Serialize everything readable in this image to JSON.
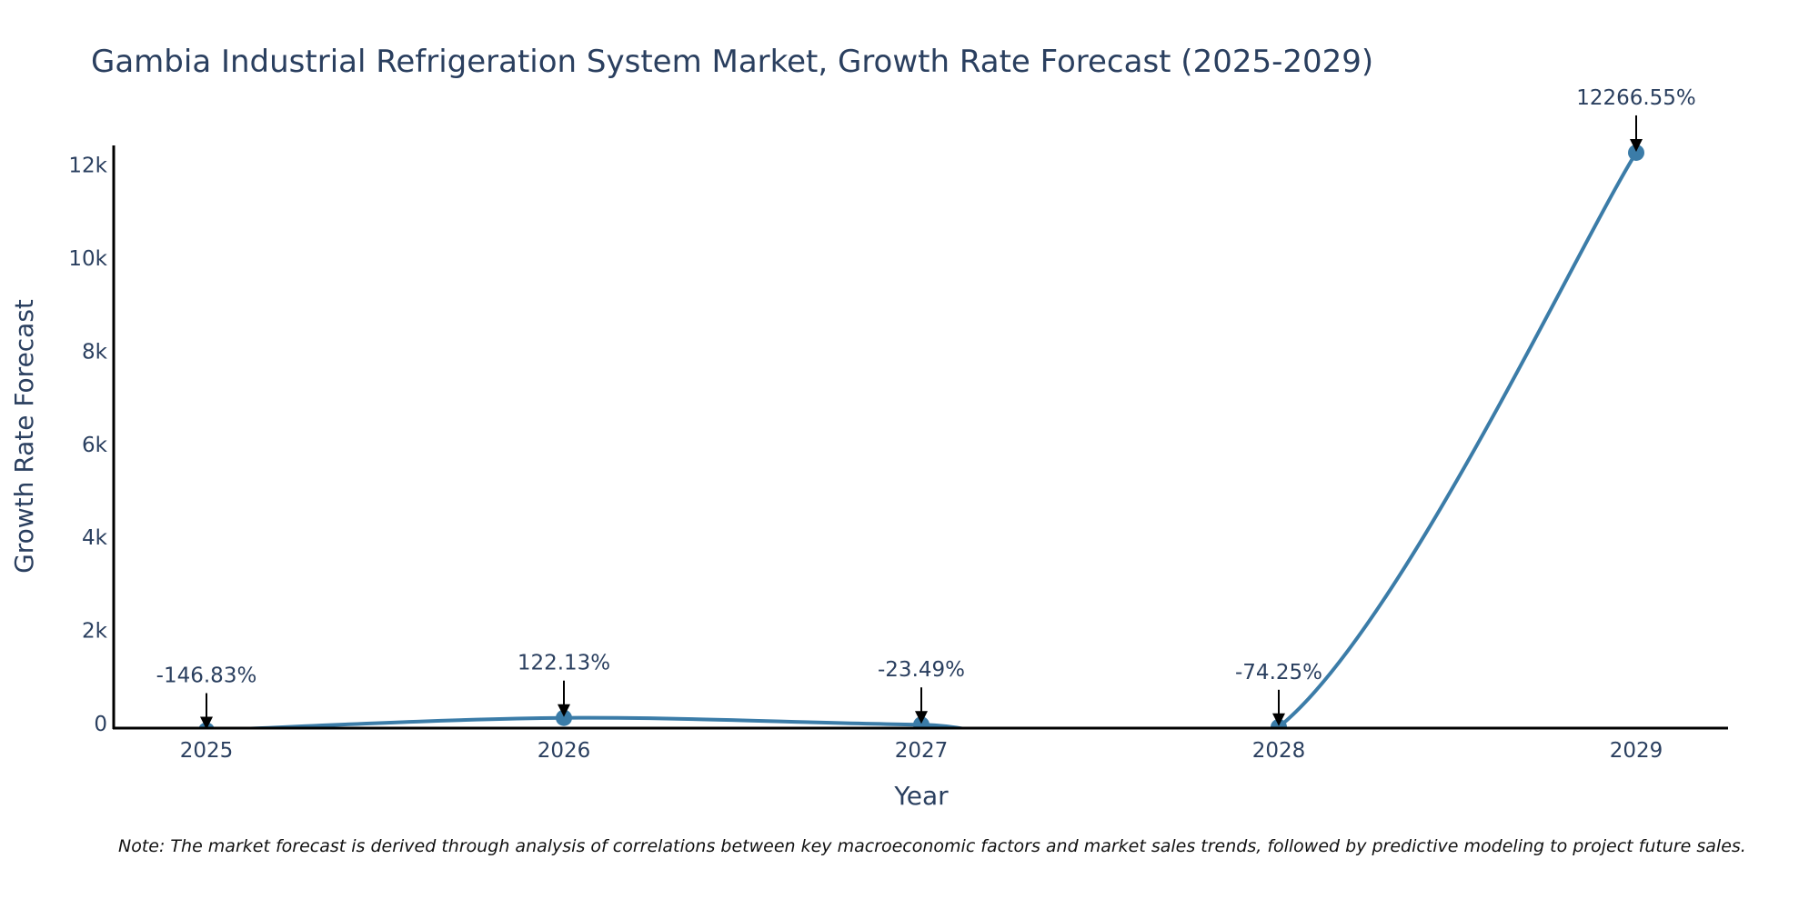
{
  "colors": {
    "series": "#3b7ca8",
    "text": "#2a3f5f",
    "axis": "#000000",
    "arrow": "#000000",
    "background": "#ffffff"
  },
  "note": "Note: The market forecast is derived through analysis of correlations between key macroeconomic factors and market sales trends, followed by predictive modeling to project future sales.",
  "chart_data": {
    "type": "line",
    "title": "Gambia Industrial Refrigeration System Market, Growth Rate Forecast (2025-2029)",
    "xlabel": "Year",
    "ylabel": "Growth Rate Forecast",
    "categories": [
      "2025",
      "2026",
      "2027",
      "2028",
      "2029"
    ],
    "series": [
      {
        "name": "Growth Rate Forecast",
        "values": [
          -146.83,
          122.13,
          -23.49,
          -74.25,
          12266.55
        ],
        "labels": [
          "-146.83%",
          "122.13%",
          "-23.49%",
          "-74.25%",
          "12266.55%"
        ]
      }
    ],
    "yticks": [
      0,
      2000,
      4000,
      6000,
      8000,
      10000,
      12000
    ],
    "ytick_labels": [
      "0",
      "2k",
      "4k",
      "6k",
      "8k",
      "10k",
      "12k"
    ],
    "ylim": [
      -150,
      12266.55
    ],
    "grid": false,
    "line_shape": "spline"
  }
}
